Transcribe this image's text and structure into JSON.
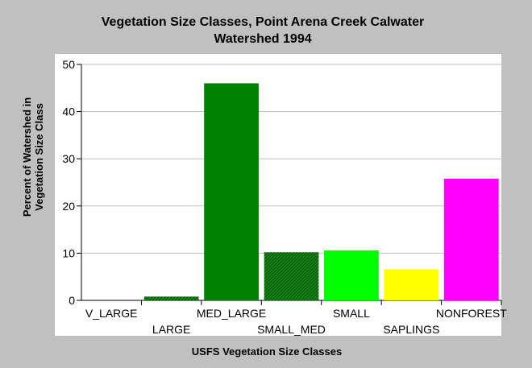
{
  "chart_data": {
    "type": "bar",
    "title_lines": [
      "Vegetation Size Classes, Point Arena Creek Calwater",
      "Watershed 1994"
    ],
    "xlabel": "USFS Vegetation Size Classes",
    "ylabel_lines": [
      "Percent of Watershed in",
      "Vegetation Size Class"
    ],
    "categories": [
      "V_LARGE",
      "LARGE",
      "MED_LARGE",
      "SMALL_MED",
      "SMALL",
      "SAPLINGS",
      "NONFOREST"
    ],
    "values": [
      0,
      0.8,
      46,
      10.2,
      10.6,
      6.6,
      25.8
    ],
    "colors": [
      "#006400",
      "#006400",
      "#008000",
      "#006400",
      "#00ff00",
      "#ffff00",
      "#ff00ff"
    ],
    "patterns": [
      "hatch",
      "hatch",
      "solid",
      "hatch",
      "solid",
      "solid",
      "solid"
    ],
    "ylim": [
      0,
      50
    ],
    "yticks": [
      0,
      10,
      20,
      30,
      40,
      50
    ],
    "grid": true,
    "plot_background": "#ffffff",
    "page_background": "#c0c0c0"
  }
}
